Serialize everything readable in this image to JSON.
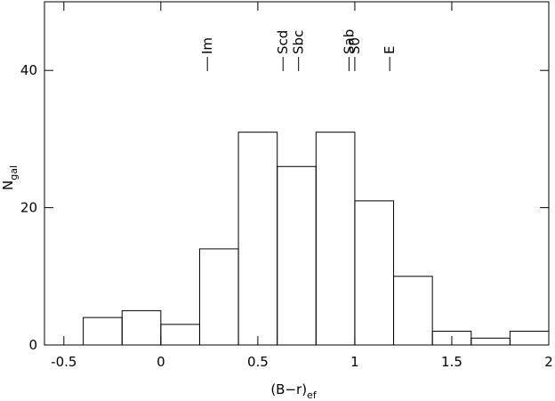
{
  "chart_data": {
    "type": "histogram",
    "xlabel": "(B−r)",
    "xlabel_sub": "ef",
    "ylabel": "N",
    "ylabel_sub": "gal",
    "bins": [
      -0.4,
      -0.2,
      0,
      0.2,
      0.4,
      0.6,
      0.8,
      1.0,
      1.2,
      1.4,
      1.6,
      1.8,
      2.0
    ],
    "counts": [
      4,
      5,
      3,
      14,
      31,
      26,
      31,
      21,
      10,
      2,
      1,
      2
    ],
    "color": "#000000",
    "xlim": [
      -0.6,
      2.0
    ],
    "xticks": [
      -0.5,
      0,
      0.5,
      1,
      1.5,
      2
    ],
    "ylim": [
      0,
      50
    ],
    "yticks": [
      0,
      20,
      40
    ],
    "annotations": [
      {
        "text": "Im",
        "x": 0.24
      },
      {
        "text": "Scd",
        "x": 0.63
      },
      {
        "text": "Sbc",
        "x": 0.71
      },
      {
        "text": "Sab",
        "x": 0.97
      },
      {
        "text": "S0",
        "x": 1.0
      },
      {
        "text": "E",
        "x": 1.18
      }
    ]
  }
}
